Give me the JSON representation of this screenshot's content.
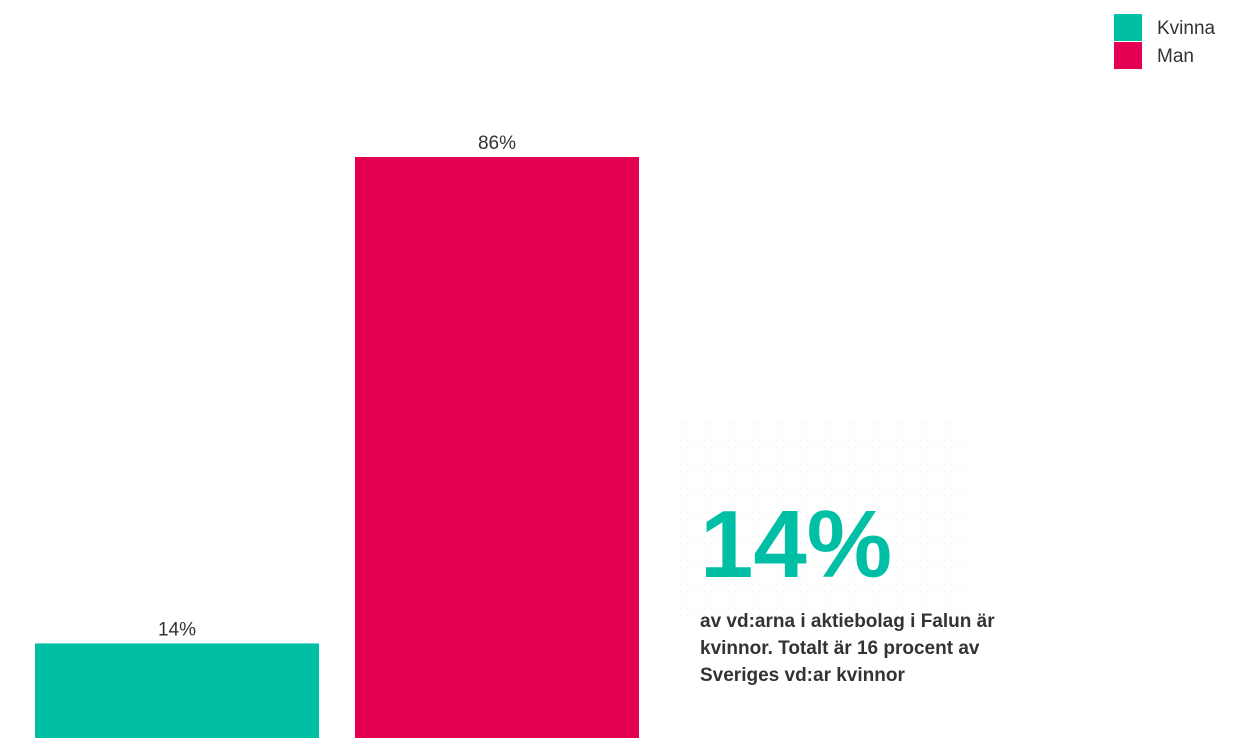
{
  "chart_data": {
    "type": "bar",
    "categories": [
      null
    ],
    "series": [
      {
        "name": "Kvinna",
        "color": "#00bfa5",
        "values": [
          14
        ],
        "value_labels": [
          "14%"
        ]
      },
      {
        "name": "Man",
        "color": "#e30052",
        "values": [
          86
        ],
        "value_labels": [
          "86%"
        ]
      }
    ],
    "legend": "top-right",
    "annotation": {
      "headline": "14%",
      "text_lines": [
        "av vd:arna i aktiebolag i  Falun är",
        "kvinnor. Totalt är 16 procent av",
        "Sveriges vd:ar kvinnor"
      ],
      "color": "#00bfa5"
    }
  }
}
